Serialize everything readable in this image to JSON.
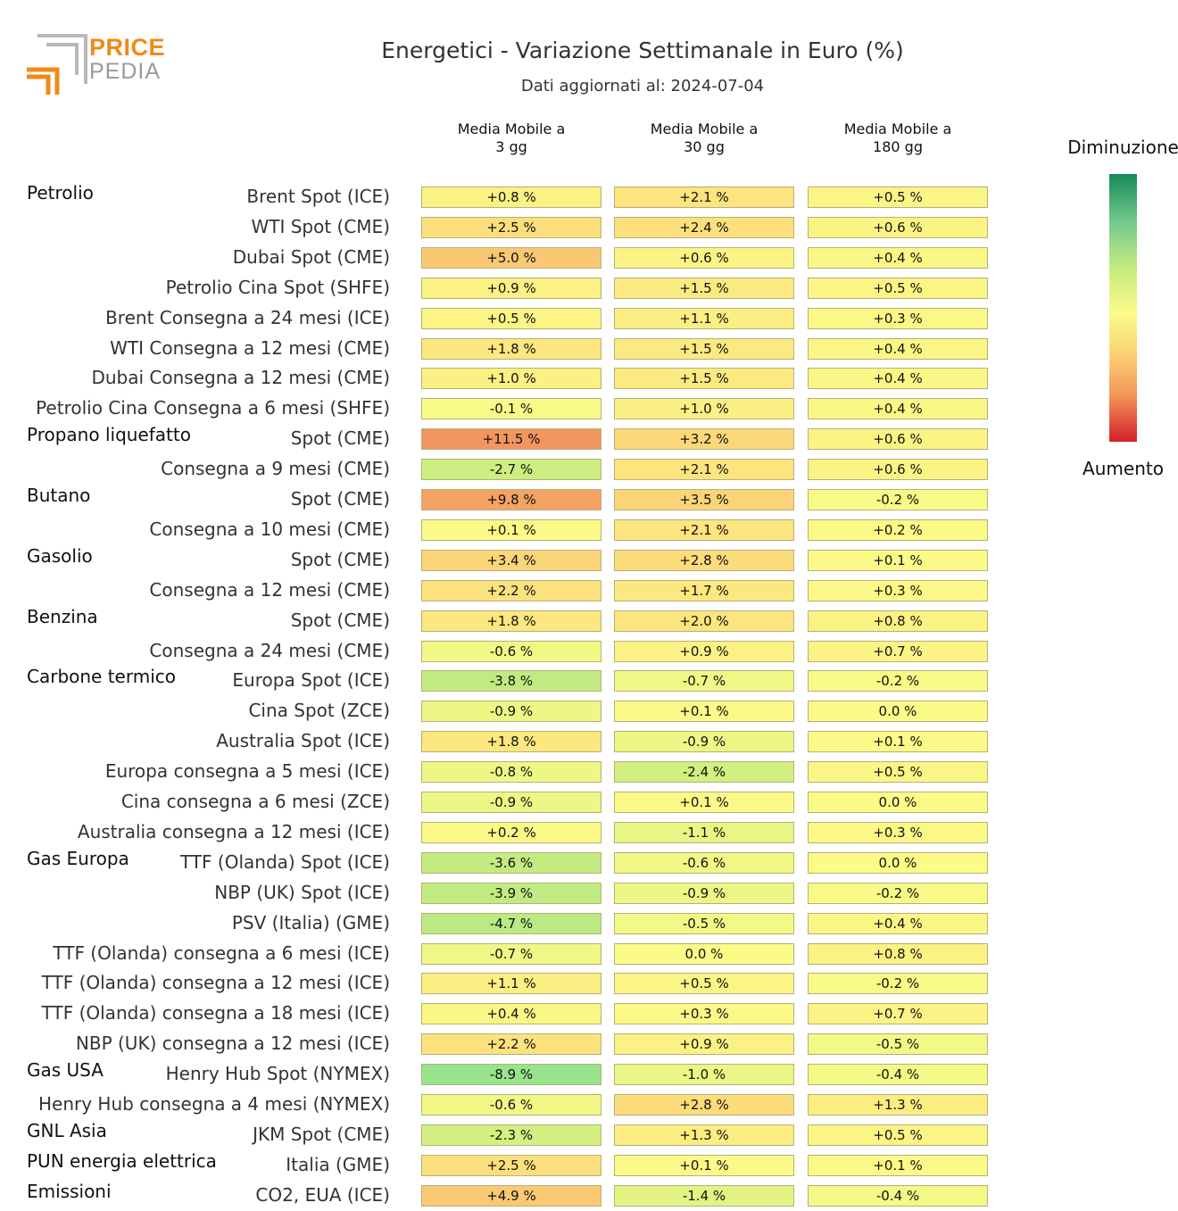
{
  "logo": {
    "line1": "PRICE",
    "line2": "PEDIA"
  },
  "title": "Energetici - Variazione Settimanale in Euro (%)",
  "subtitle": "Dati aggiornati al: 2024-07-04",
  "legend": {
    "top": "Diminuzione",
    "bottom": "Aumento"
  },
  "colors": {
    "green_dark": "#14895a",
    "yellow": "#fbfb88",
    "orange": "#f29a5a",
    "red": "#d41f2a",
    "logo_orange": "#ef8a1a",
    "logo_gray": "#9a9a9a"
  },
  "chart_data": {
    "type": "heatmap",
    "title": "Energetici - Variazione Settimanale in Euro (%)",
    "columns": [
      "Media Mobile a\n3 gg",
      "Media Mobile a\n30 gg",
      "Media Mobile a\n180 gg"
    ],
    "unit": "%",
    "rows": [
      {
        "group": "Petrolio",
        "label": "Brent Spot (ICE)",
        "values": [
          0.8,
          2.1,
          0.5
        ]
      },
      {
        "group": "",
        "label": "WTI Spot (CME)",
        "values": [
          2.5,
          2.4,
          0.6
        ]
      },
      {
        "group": "",
        "label": "Dubai Spot (CME)",
        "values": [
          5.0,
          0.6,
          0.4
        ]
      },
      {
        "group": "",
        "label": "Petrolio Cina Spot (SHFE)",
        "values": [
          0.9,
          1.5,
          0.5
        ]
      },
      {
        "group": "",
        "label": "Brent Consegna a 24 mesi (ICE)",
        "values": [
          0.5,
          1.1,
          0.3
        ]
      },
      {
        "group": "",
        "label": "WTI Consegna a 12 mesi (CME)",
        "values": [
          1.8,
          1.5,
          0.4
        ]
      },
      {
        "group": "",
        "label": "Dubai Consegna a 12 mesi (CME)",
        "values": [
          1.0,
          1.5,
          0.4
        ]
      },
      {
        "group": "",
        "label": "Petrolio Cina Consegna a 6 mesi (SHFE)",
        "values": [
          -0.1,
          1.0,
          0.4
        ]
      },
      {
        "group": "Propano liquefatto",
        "label": "Spot (CME)",
        "values": [
          11.5,
          3.2,
          0.6
        ]
      },
      {
        "group": "",
        "label": "Consegna a 9 mesi (CME)",
        "values": [
          -2.7,
          2.1,
          0.6
        ]
      },
      {
        "group": "Butano",
        "label": "Spot (CME)",
        "values": [
          9.8,
          3.5,
          -0.2
        ]
      },
      {
        "group": "",
        "label": "Consegna a 10 mesi (CME)",
        "values": [
          0.1,
          2.1,
          0.2
        ]
      },
      {
        "group": "Gasolio",
        "label": "Spot (CME)",
        "values": [
          3.4,
          2.8,
          0.1
        ]
      },
      {
        "group": "",
        "label": "Consegna a 12 mesi (CME)",
        "values": [
          2.2,
          1.7,
          0.3
        ]
      },
      {
        "group": "Benzina",
        "label": "Spot (CME)",
        "values": [
          1.8,
          2.0,
          0.8
        ]
      },
      {
        "group": "",
        "label": "Consegna a 24 mesi (CME)",
        "values": [
          -0.6,
          0.9,
          0.7
        ]
      },
      {
        "group": "Carbone termico",
        "label": "Europa Spot (ICE)",
        "values": [
          -3.8,
          -0.7,
          -0.2
        ]
      },
      {
        "group": "",
        "label": "Cina Spot (ZCE)",
        "values": [
          -0.9,
          0.1,
          0.0
        ]
      },
      {
        "group": "",
        "label": "Australia Spot (ICE)",
        "values": [
          1.8,
          -0.9,
          0.1
        ]
      },
      {
        "group": "",
        "label": "Europa consegna a 5 mesi (ICE)",
        "values": [
          -0.8,
          -2.4,
          0.5
        ]
      },
      {
        "group": "",
        "label": "Cina consegna a 6 mesi (ZCE)",
        "values": [
          -0.9,
          0.1,
          0.0
        ]
      },
      {
        "group": "",
        "label": "Australia consegna a 12 mesi (ICE)",
        "values": [
          0.2,
          -1.1,
          0.3
        ]
      },
      {
        "group": "Gas Europa",
        "label": "TTF (Olanda) Spot (ICE)",
        "values": [
          -3.6,
          -0.6,
          0.0
        ]
      },
      {
        "group": "",
        "label": "NBP (UK) Spot (ICE)",
        "values": [
          -3.9,
          -0.9,
          -0.2
        ]
      },
      {
        "group": "",
        "label": "PSV (Italia) (GME)",
        "values": [
          -4.7,
          -0.5,
          0.4
        ]
      },
      {
        "group": "",
        "label": "TTF (Olanda) consegna a 6 mesi (ICE)",
        "values": [
          -0.7,
          0.0,
          0.8
        ]
      },
      {
        "group": "",
        "label": "TTF (Olanda) consegna a 12 mesi (ICE)",
        "values": [
          1.1,
          0.5,
          -0.2
        ]
      },
      {
        "group": "",
        "label": "TTF (Olanda) consegna a 18 mesi (ICE)",
        "values": [
          0.4,
          0.3,
          0.7
        ]
      },
      {
        "group": "",
        "label": "NBP (UK) consegna a 12 mesi (ICE)",
        "values": [
          2.2,
          0.9,
          -0.5
        ]
      },
      {
        "group": "Gas USA",
        "label": "Henry Hub Spot (NYMEX)",
        "values": [
          -8.9,
          -1.0,
          -0.4
        ]
      },
      {
        "group": "",
        "label": "Henry Hub consegna a 4 mesi (NYMEX)",
        "values": [
          -0.6,
          2.8,
          1.3
        ]
      },
      {
        "group": "GNL Asia",
        "label": "JKM Spot (CME)",
        "values": [
          -2.3,
          1.3,
          0.5
        ]
      },
      {
        "group": "PUN energia elettrica",
        "label": "Italia (GME)",
        "values": [
          2.5,
          0.1,
          0.1
        ]
      },
      {
        "group": "Emissioni",
        "label": "CO2, EUA (ICE)",
        "values": [
          4.9,
          -1.4,
          -0.4
        ]
      }
    ]
  }
}
